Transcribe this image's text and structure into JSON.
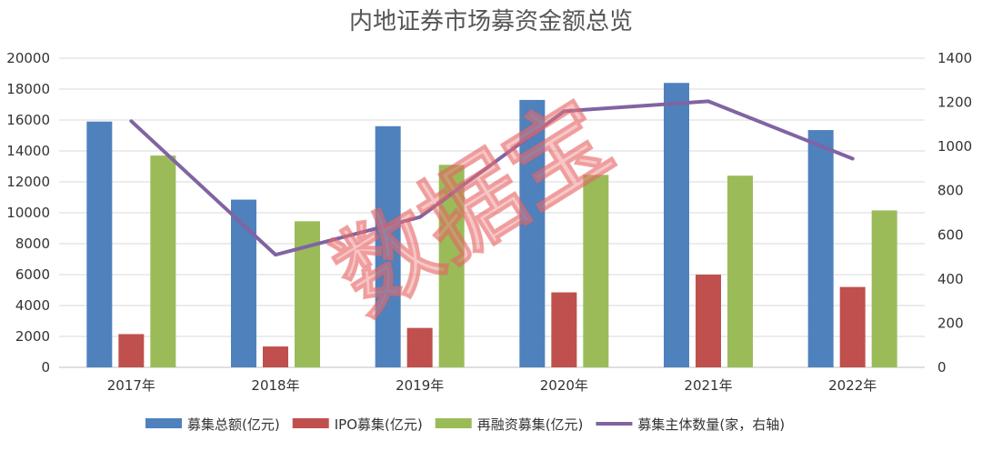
{
  "chart_data": {
    "type": "bar",
    "title": "内地证券市场募资金额总览",
    "categories": [
      "2017年",
      "2018年",
      "2019年",
      "2020年",
      "2021年",
      "2022年"
    ],
    "series": [
      {
        "name": "募集总额(亿元)",
        "type": "bar",
        "axis": "left",
        "color": "#4f81bd",
        "values": [
          15900,
          10850,
          15600,
          17300,
          18400,
          15350
        ]
      },
      {
        "name": "IPO募集(亿元)",
        "type": "bar",
        "axis": "left",
        "color": "#c0504d",
        "values": [
          2150,
          1350,
          2550,
          4850,
          6000,
          5200
        ]
      },
      {
        "name": "再融资募集(亿元)",
        "type": "bar",
        "axis": "left",
        "color": "#9bbb59",
        "values": [
          13700,
          9450,
          13100,
          12450,
          12400,
          10150
        ]
      },
      {
        "name": "募集主体数量(家，右轴)",
        "type": "line",
        "axis": "right",
        "color": "#8064a2",
        "values": [
          1115,
          510,
          680,
          1160,
          1205,
          945
        ]
      }
    ],
    "y_left": {
      "min": 0,
      "max": 20000,
      "ticks": [
        "0",
        "2000",
        "4000",
        "6000",
        "8000",
        "10000",
        "12000",
        "14000",
        "16000",
        "18000",
        "20000"
      ]
    },
    "y_right": {
      "min": 0,
      "max": 1400,
      "ticks": [
        "0",
        "200",
        "400",
        "600",
        "800",
        "1000",
        "1200",
        "1400"
      ]
    },
    "grid": true,
    "legend_position": "bottom",
    "watermark": "数据宝"
  }
}
